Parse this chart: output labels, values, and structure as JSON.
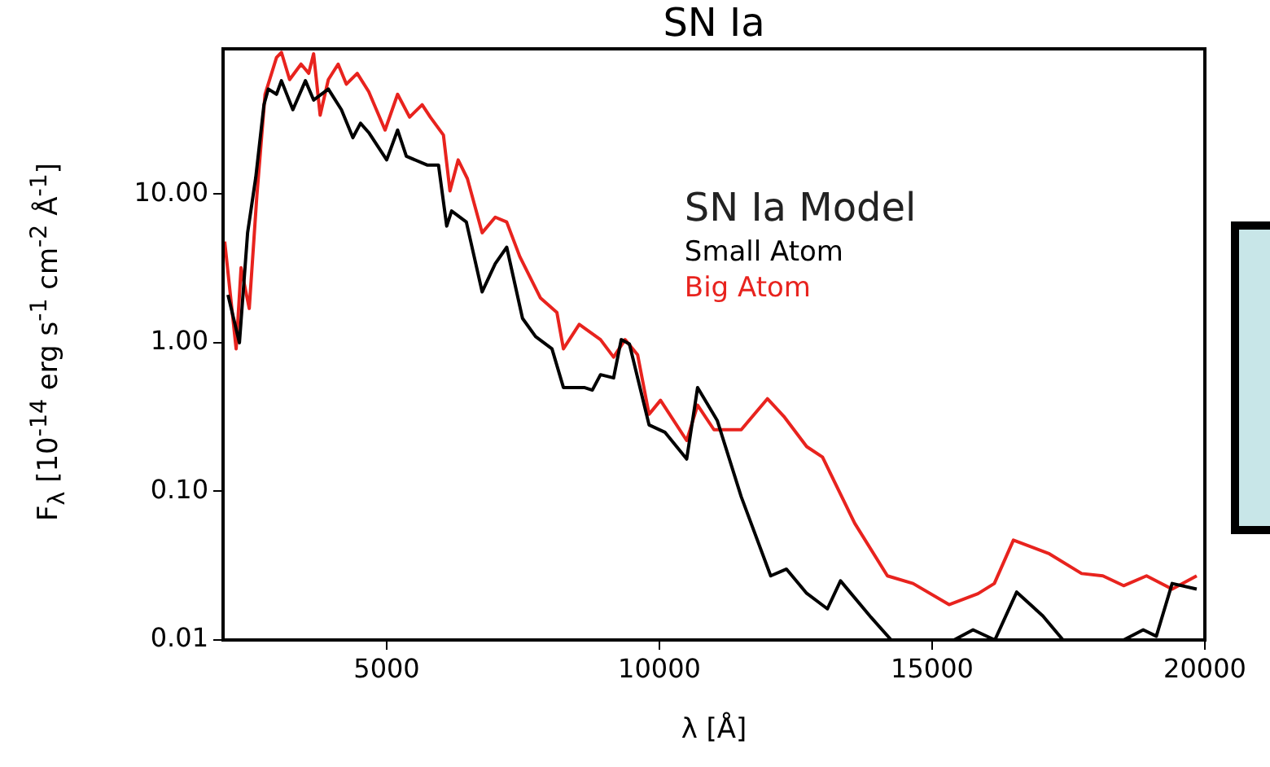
{
  "chart_data": {
    "type": "line",
    "title": "SN Ia",
    "xlabel": "λ [Å]",
    "ylabel": "F$_{λ}$ [10$^{-14}$ erg s$^{-1}$ cm$^{-2}$ Å$^{-1}$]",
    "legend_title": "SN Ia Model",
    "legend": "top right",
    "grid": false,
    "log": "y",
    "marker": "none",
    "line_style": "solid",
    "xlim": [
      2000,
      20000
    ],
    "xticks": [
      5000,
      10000,
      15000,
      20000
    ],
    "ylim": [
      0.01,
      95
    ],
    "yticks": [
      {
        "value": 0.01,
        "label": "0.01"
      },
      {
        "value": 0.1,
        "label": "0.10"
      },
      {
        "value": 1,
        "label": "1.00"
      },
      {
        "value": 10,
        "label": "10.00"
      }
    ],
    "series": [
      {
        "name": "Small Atom",
        "color": "#000000",
        "x": [
          2090,
          2300,
          2450,
          2600,
          2750,
          2830,
          2980,
          3070,
          3280,
          3510,
          3660,
          3930,
          4170,
          4380,
          4520,
          4670,
          5000,
          5200,
          5360,
          5740,
          5950,
          6100,
          6190,
          6460,
          6750,
          6990,
          7200,
          7490,
          7730,
          8030,
          8240,
          8620,
          8770,
          8920,
          9160,
          9300,
          9450,
          9810,
          10100,
          10500,
          10700,
          11060,
          11500,
          12040,
          12330,
          12700,
          13080,
          13320,
          13880,
          14250,
          15400,
          15750,
          16150,
          16550,
          17030,
          17400,
          17800,
          18200,
          18510,
          18870,
          19110,
          19400,
          19850
        ],
        "values": [
          2.1,
          1.0,
          5.5,
          13,
          40,
          51,
          47,
          58,
          37,
          58,
          43,
          51,
          37,
          24,
          30,
          26,
          17,
          27,
          18,
          15.7,
          15.7,
          6.1,
          7.7,
          6.5,
          2.2,
          3.4,
          4.4,
          1.46,
          1.1,
          0.91,
          0.5,
          0.5,
          0.48,
          0.61,
          0.58,
          1.05,
          0.98,
          0.28,
          0.25,
          0.165,
          0.5,
          0.3,
          0.092,
          0.027,
          0.03,
          0.0206,
          0.0162,
          0.025,
          0.0142,
          0.01,
          0.01,
          0.0117,
          0.01,
          0.021,
          0.0145,
          0.01,
          null,
          null,
          0.01,
          0.0117,
          0.0106,
          0.024,
          0.022
        ]
      },
      {
        "name": "Big Atom",
        "color": "#e8231e",
        "x": [
          2030,
          2240,
          2330,
          2480,
          2620,
          2770,
          2980,
          3070,
          3220,
          3430,
          3570,
          3660,
          3780,
          3930,
          4110,
          4260,
          4460,
          4670,
          4970,
          5200,
          5420,
          5650,
          5800,
          6040,
          6160,
          6310,
          6480,
          6750,
          6990,
          7200,
          7440,
          7820,
          8120,
          8240,
          8530,
          8920,
          9160,
          9370,
          9600,
          9810,
          10020,
          10500,
          10700,
          11000,
          11500,
          11980,
          12280,
          12700,
          12990,
          13580,
          14180,
          14650,
          15310,
          15840,
          16140,
          16490,
          17150,
          17740,
          18130,
          18510,
          18930,
          19400,
          19850
        ],
        "values": [
          4.8,
          0.91,
          3.2,
          1.7,
          9.8,
          47,
          83,
          90,
          59,
          75,
          65,
          88,
          34,
          59,
          75,
          55,
          65,
          49,
          27,
          47,
          33,
          40,
          33,
          25,
          10.5,
          17,
          12.7,
          5.5,
          7.0,
          6.5,
          3.8,
          2.0,
          1.6,
          0.91,
          1.33,
          1.05,
          0.8,
          1.05,
          0.83,
          0.33,
          0.41,
          0.22,
          0.38,
          0.26,
          0.26,
          0.42,
          0.32,
          0.2,
          0.17,
          0.061,
          0.027,
          0.024,
          0.0173,
          0.0205,
          0.024,
          0.047,
          0.038,
          0.028,
          0.027,
          0.0232,
          0.027,
          0.022,
          0.027
        ]
      }
    ]
  }
}
